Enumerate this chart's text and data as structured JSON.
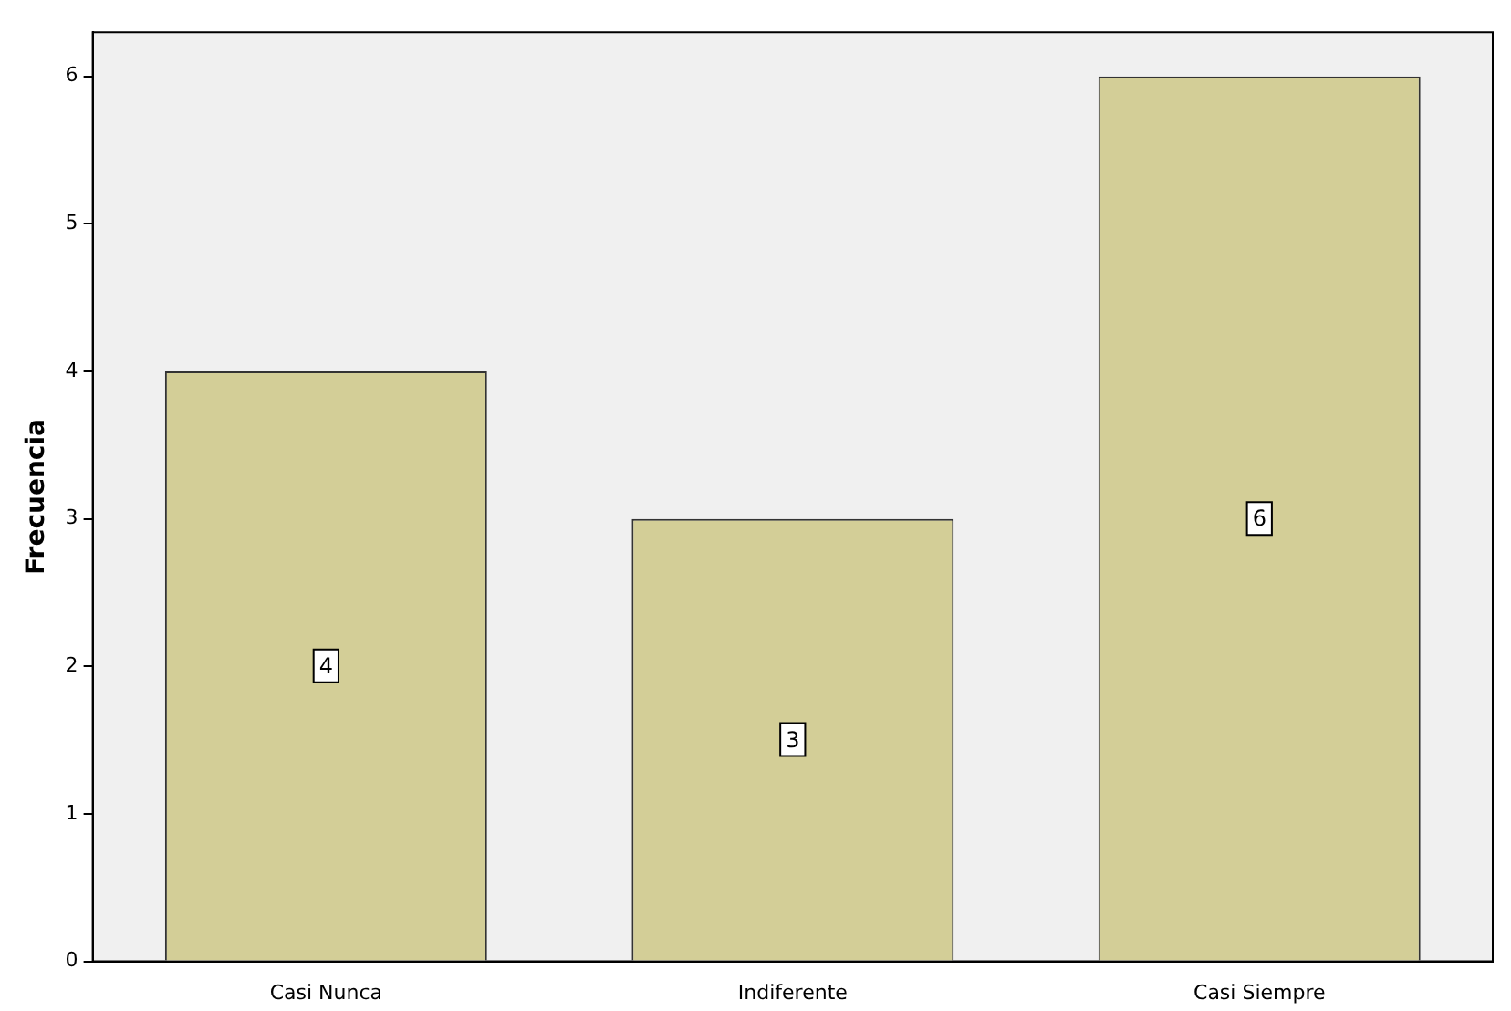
{
  "chart_data": {
    "type": "bar",
    "ylabel": "Frecuencia",
    "categories": [
      "Casi Nunca",
      "Indiferente",
      "Casi Siempre"
    ],
    "values": [
      4,
      3,
      6
    ],
    "color": "#d3ce97",
    "ylim": [
      0,
      6.3
    ],
    "yticks": [
      0,
      1,
      2,
      3,
      4,
      5,
      6
    ],
    "grid": false,
    "legend": false,
    "data_labels": true
  }
}
